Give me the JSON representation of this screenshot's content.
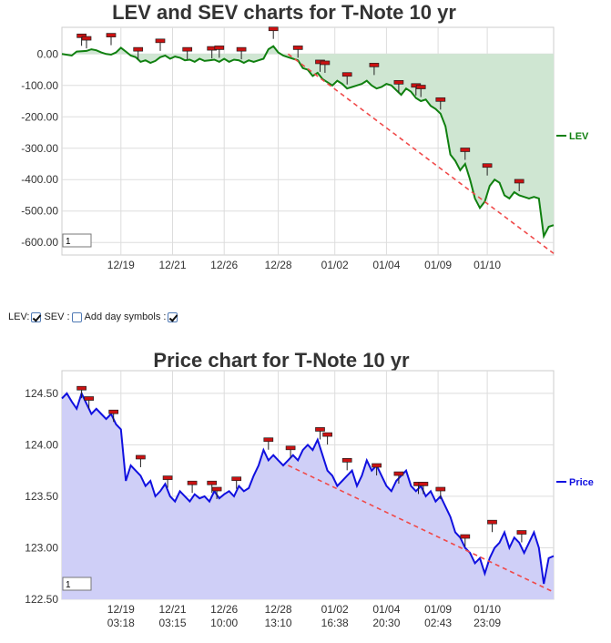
{
  "colors": {
    "lev_line": "#108010",
    "lev_fill": "#cfe6d2",
    "price_line": "#1010e0",
    "price_fill": "#cfcff7",
    "trend_line": "#f04a4a",
    "marker": "#cc1111",
    "grid": "#dddddd"
  },
  "controls": {
    "lev_label": "LEV:",
    "lev_checked": true,
    "sev_label": "SEV :",
    "sev_checked": false,
    "day_symbols_label": "Add day symbols :",
    "day_symbols_checked": true
  },
  "chart_data": [
    {
      "type": "line",
      "title": "LEV and SEV charts for T-Note 10 yr",
      "zoom_box": "1",
      "ylim": [
        -640,
        85
      ],
      "y_ticks": [
        0,
        -100,
        -200,
        -300,
        -400,
        -500,
        -600
      ],
      "y_tick_labels": [
        "0.00",
        "-100.00",
        "-200.00",
        "-300.00",
        "-400.00",
        "-500.00",
        "-600.00"
      ],
      "x_ticks": [
        {
          "label": [
            "12/19",
            "03:18"
          ],
          "x": 0.12
        },
        {
          "label": [
            "12/21",
            "03:15"
          ],
          "x": 0.225
        },
        {
          "label": [
            "12/26",
            "10:00"
          ],
          "x": 0.33
        },
        {
          "label": [
            "12/28",
            "13:10"
          ],
          "x": 0.44
        },
        {
          "label": [
            "01/02",
            "16:38"
          ],
          "x": 0.555
        },
        {
          "label": [
            "01/04",
            "20:30"
          ],
          "x": 0.66
        },
        {
          "label": [
            "01/09",
            "02:43"
          ],
          "x": 0.765
        },
        {
          "label": [
            "01/10",
            "23:09"
          ],
          "x": 0.865
        }
      ],
      "series": [
        {
          "name": "LEV",
          "x": [
            0,
            0.02,
            0.03,
            0.05,
            0.06,
            0.07,
            0.08,
            0.09,
            0.1,
            0.11,
            0.12,
            0.13,
            0.14,
            0.15,
            0.16,
            0.17,
            0.18,
            0.19,
            0.2,
            0.21,
            0.22,
            0.23,
            0.24,
            0.25,
            0.26,
            0.27,
            0.28,
            0.29,
            0.3,
            0.31,
            0.32,
            0.33,
            0.34,
            0.35,
            0.36,
            0.37,
            0.38,
            0.39,
            0.4,
            0.41,
            0.42,
            0.43,
            0.44,
            0.45,
            0.46,
            0.47,
            0.48,
            0.49,
            0.5,
            0.51,
            0.52,
            0.53,
            0.54,
            0.55,
            0.56,
            0.57,
            0.58,
            0.59,
            0.6,
            0.61,
            0.62,
            0.63,
            0.64,
            0.65,
            0.66,
            0.67,
            0.68,
            0.69,
            0.7,
            0.71,
            0.72,
            0.73,
            0.74,
            0.75,
            0.76,
            0.77,
            0.78,
            0.79,
            0.8,
            0.81,
            0.82,
            0.83,
            0.84,
            0.85,
            0.86,
            0.87,
            0.88,
            0.89,
            0.9,
            0.91,
            0.92,
            0.93,
            0.94,
            0.95,
            0.96,
            0.97,
            0.98,
            0.99,
            1.0
          ],
          "values": [
            0,
            -5,
            8,
            10,
            15,
            12,
            5,
            0,
            -2,
            5,
            20,
            8,
            -5,
            -10,
            -25,
            -20,
            -28,
            -22,
            -10,
            -5,
            -15,
            -8,
            -12,
            -20,
            -18,
            -25,
            -15,
            -22,
            -20,
            -18,
            -25,
            -15,
            -25,
            -18,
            -20,
            -28,
            -20,
            -25,
            -20,
            -15,
            15,
            25,
            5,
            -5,
            -10,
            -15,
            -20,
            -45,
            -50,
            -70,
            -60,
            -80,
            -90,
            -100,
            -85,
            -95,
            -110,
            -105,
            -100,
            -95,
            -85,
            -100,
            -110,
            -105,
            -95,
            -100,
            -115,
            -130,
            -110,
            -120,
            -140,
            -150,
            -145,
            -165,
            -175,
            -190,
            -230,
            -320,
            -340,
            -370,
            -350,
            -400,
            -460,
            -490,
            -470,
            -420,
            -400,
            -410,
            -450,
            -460,
            -440,
            -450,
            -455,
            -460,
            -455,
            -460,
            -580,
            -550,
            -545
          ]
        },
        {
          "name": "SEV",
          "x": [
            0.46,
            1.0
          ],
          "values": [
            0,
            -635
          ]
        }
      ],
      "markers": [
        {
          "x": 0.04,
          "y": 58
        },
        {
          "x": 0.05,
          "y": 50
        },
        {
          "x": 0.1,
          "y": 60
        },
        {
          "x": 0.155,
          "y": 15
        },
        {
          "x": 0.2,
          "y": 42
        },
        {
          "x": 0.255,
          "y": 15
        },
        {
          "x": 0.305,
          "y": 18
        },
        {
          "x": 0.32,
          "y": 20
        },
        {
          "x": 0.365,
          "y": 15
        },
        {
          "x": 0.43,
          "y": 80
        },
        {
          "x": 0.48,
          "y": 20
        },
        {
          "x": 0.525,
          "y": -25
        },
        {
          "x": 0.535,
          "y": -28
        },
        {
          "x": 0.58,
          "y": -65
        },
        {
          "x": 0.635,
          "y": -35
        },
        {
          "x": 0.685,
          "y": -90
        },
        {
          "x": 0.72,
          "y": -100
        },
        {
          "x": 0.73,
          "y": -105
        },
        {
          "x": 0.77,
          "y": -145
        },
        {
          "x": 0.82,
          "y": -305
        },
        {
          "x": 0.865,
          "y": -355
        },
        {
          "x": 0.93,
          "y": -405
        }
      ],
      "legend": "LEV",
      "legend_position": "right"
    },
    {
      "type": "area",
      "title": "Price chart for T-Note 10 yr",
      "zoom_box": "1",
      "ylim": [
        122.5,
        124.72
      ],
      "y_ticks": [
        124.5,
        124.0,
        123.5,
        123.0,
        122.5
      ],
      "y_tick_labels": [
        "124.50",
        "124.00",
        "123.50",
        "123.00",
        "122.50"
      ],
      "x_ticks": [
        {
          "label": [
            "12/19",
            "03:18"
          ],
          "x": 0.12
        },
        {
          "label": [
            "12/21",
            "03:15"
          ],
          "x": 0.225
        },
        {
          "label": [
            "12/26",
            "10:00"
          ],
          "x": 0.33
        },
        {
          "label": [
            "12/28",
            "13:10"
          ],
          "x": 0.44
        },
        {
          "label": [
            "01/02",
            "16:38"
          ],
          "x": 0.555
        },
        {
          "label": [
            "01/04",
            "20:30"
          ],
          "x": 0.66
        },
        {
          "label": [
            "01/09",
            "02:43"
          ],
          "x": 0.765
        },
        {
          "label": [
            "01/10",
            "23:09"
          ],
          "x": 0.865
        }
      ],
      "series": [
        {
          "name": "Price",
          "x": [
            0,
            0.01,
            0.02,
            0.03,
            0.04,
            0.05,
            0.06,
            0.07,
            0.08,
            0.09,
            0.1,
            0.11,
            0.12,
            0.13,
            0.14,
            0.15,
            0.16,
            0.17,
            0.18,
            0.19,
            0.2,
            0.21,
            0.22,
            0.23,
            0.24,
            0.25,
            0.26,
            0.27,
            0.28,
            0.29,
            0.3,
            0.31,
            0.32,
            0.33,
            0.34,
            0.35,
            0.36,
            0.37,
            0.38,
            0.39,
            0.4,
            0.41,
            0.42,
            0.43,
            0.44,
            0.45,
            0.46,
            0.47,
            0.48,
            0.49,
            0.5,
            0.51,
            0.52,
            0.53,
            0.54,
            0.55,
            0.56,
            0.57,
            0.58,
            0.59,
            0.6,
            0.61,
            0.62,
            0.63,
            0.64,
            0.65,
            0.66,
            0.67,
            0.68,
            0.69,
            0.7,
            0.71,
            0.72,
            0.73,
            0.74,
            0.75,
            0.76,
            0.77,
            0.78,
            0.79,
            0.8,
            0.81,
            0.82,
            0.83,
            0.84,
            0.85,
            0.86,
            0.87,
            0.88,
            0.89,
            0.9,
            0.91,
            0.92,
            0.93,
            0.94,
            0.95,
            0.96,
            0.97,
            0.98,
            0.99,
            1.0
          ],
          "values": [
            124.45,
            124.5,
            124.42,
            124.35,
            124.5,
            124.4,
            124.3,
            124.35,
            124.3,
            124.25,
            124.3,
            124.2,
            124.15,
            123.65,
            123.8,
            123.75,
            123.7,
            123.6,
            123.65,
            123.5,
            123.55,
            123.62,
            123.5,
            123.45,
            123.55,
            123.5,
            123.45,
            123.52,
            123.48,
            123.5,
            123.45,
            123.55,
            123.48,
            123.52,
            123.55,
            123.5,
            123.6,
            123.55,
            123.58,
            123.7,
            123.8,
            123.95,
            123.85,
            123.9,
            123.85,
            123.8,
            123.85,
            123.9,
            123.85,
            123.95,
            124.0,
            123.95,
            124.05,
            123.9,
            123.75,
            123.7,
            123.6,
            123.65,
            123.7,
            123.75,
            123.6,
            123.7,
            123.85,
            123.75,
            123.8,
            123.7,
            123.6,
            123.55,
            123.65,
            123.7,
            123.75,
            123.6,
            123.55,
            123.6,
            123.5,
            123.55,
            123.45,
            123.5,
            123.4,
            123.3,
            123.15,
            123.1,
            123.0,
            122.95,
            122.85,
            122.9,
            122.75,
            122.9,
            123.0,
            123.05,
            123.15,
            123.0,
            123.1,
            123.05,
            122.95,
            123.05,
            123.15,
            123.0,
            122.65,
            122.9,
            122.92
          ]
        },
        {
          "name": "Trend",
          "x": [
            0.46,
            1.0
          ],
          "values": [
            123.8,
            122.57
          ]
        }
      ],
      "markers": [
        {
          "x": 0.04,
          "y": 124.55
        },
        {
          "x": 0.055,
          "y": 124.45
        },
        {
          "x": 0.105,
          "y": 124.32
        },
        {
          "x": 0.16,
          "y": 123.88
        },
        {
          "x": 0.215,
          "y": 123.68
        },
        {
          "x": 0.265,
          "y": 123.63
        },
        {
          "x": 0.305,
          "y": 123.63
        },
        {
          "x": 0.315,
          "y": 123.57
        },
        {
          "x": 0.355,
          "y": 123.67
        },
        {
          "x": 0.42,
          "y": 124.05
        },
        {
          "x": 0.465,
          "y": 123.97
        },
        {
          "x": 0.525,
          "y": 124.15
        },
        {
          "x": 0.54,
          "y": 124.1
        },
        {
          "x": 0.58,
          "y": 123.85
        },
        {
          "x": 0.64,
          "y": 123.8
        },
        {
          "x": 0.685,
          "y": 123.72
        },
        {
          "x": 0.725,
          "y": 123.62
        },
        {
          "x": 0.735,
          "y": 123.62
        },
        {
          "x": 0.77,
          "y": 123.57
        },
        {
          "x": 0.82,
          "y": 123.11
        },
        {
          "x": 0.875,
          "y": 123.25
        },
        {
          "x": 0.935,
          "y": 123.15
        }
      ],
      "legend": "Price",
      "legend_position": "right"
    }
  ]
}
